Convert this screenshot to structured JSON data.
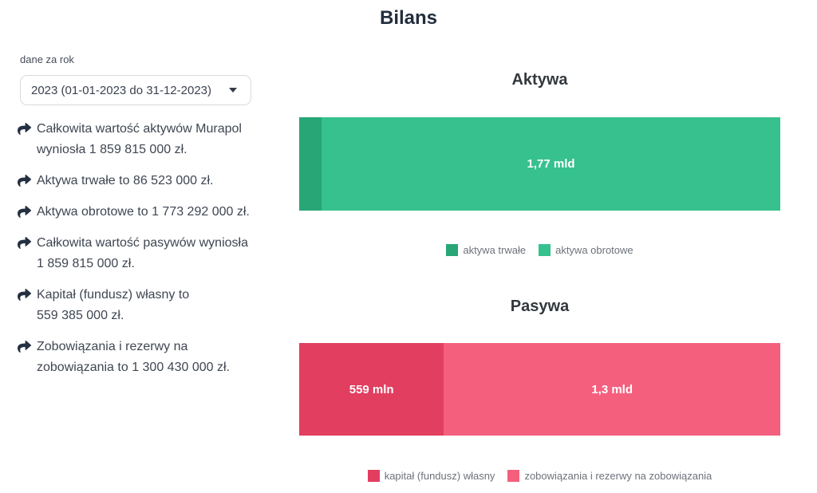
{
  "header": {
    "title": "Bilans"
  },
  "sidebar": {
    "year_filter": {
      "label": "dane za rok",
      "selected_option": "2023 (01-01-2023 do 31-12-2023)"
    },
    "facts": [
      "Całkowita wartość aktywów Murapol wyniosła 1 859 815 000 zł.",
      "Aktywa trwałe to 86 523 000 zł.",
      "Aktywa obrotowe to 1 773 292 000 zł.",
      "Całkowita wartość pasywów wyniosła 1 859 815 000 zł.",
      "Kapitał (fundusz) własny to 559 385 000 zł.",
      "Zobowiązania i rezerwy na zobowiązania to 1 300 430 000 zł."
    ],
    "icons": {
      "fact_bullet": "share-arrow-icon",
      "year_filter_caret": "caret-down-icon"
    }
  },
  "chart_data": [
    {
      "type": "bar",
      "orientation": "horizontal",
      "stacked": true,
      "title": "Aktywa",
      "legend_position": "bottom",
      "total": 1859815000,
      "series": [
        {
          "name": "aktywa trwałe",
          "value": 86523000,
          "display_label": "",
          "color": "#28a676"
        },
        {
          "name": "aktywa obrotowe",
          "value": 1773292000,
          "display_label": "1,77 mld",
          "color": "#36c18f"
        }
      ]
    },
    {
      "type": "bar",
      "orientation": "horizontal",
      "stacked": true,
      "title": "Pasywa",
      "legend_position": "bottom",
      "total": 1859815000,
      "series": [
        {
          "name": "kapitał (fundusz) własny",
          "value": 559385000,
          "display_label": "559 mln",
          "color": "#e23e60"
        },
        {
          "name": "zobowiązania i rezerwy na zobowiązania",
          "value": 1300430000,
          "display_label": "1,3 mld",
          "color": "#f55f7e"
        }
      ]
    }
  ]
}
